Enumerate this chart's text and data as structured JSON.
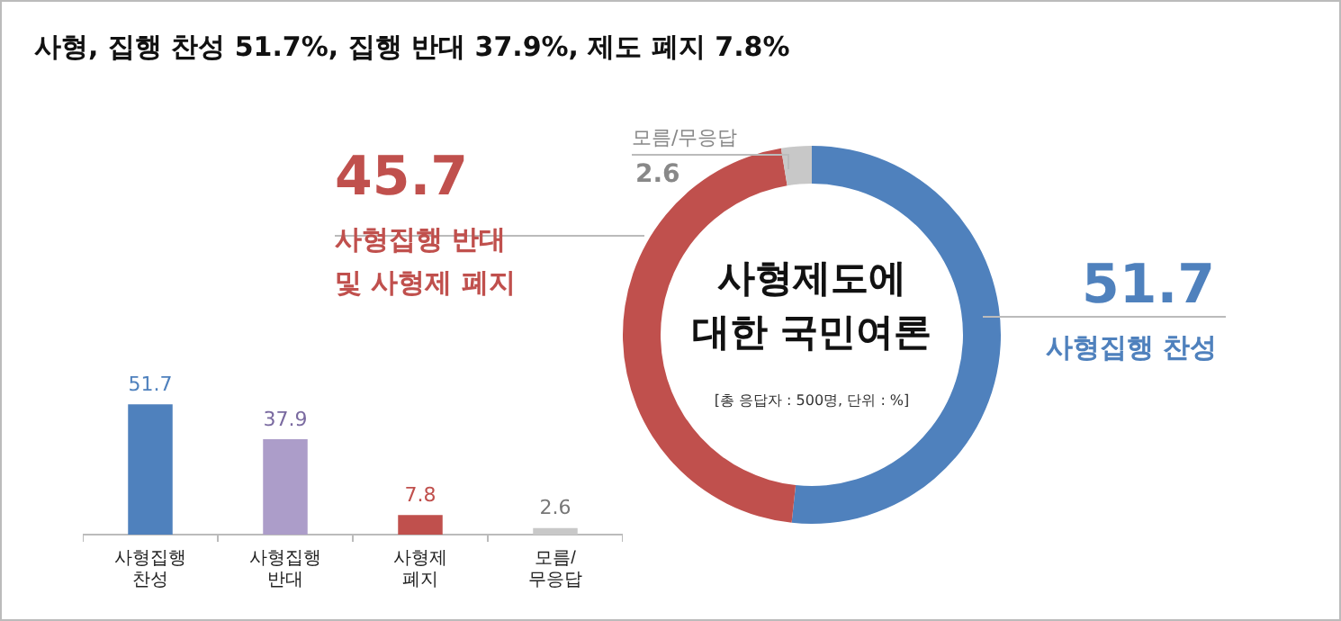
{
  "chart_data": [
    {
      "type": "bar",
      "title": "사형, 집행 찬성 51.7%, 집행 반대 37.9%, 제도 폐지 7.8%",
      "categories": [
        "사형집행\n찬성",
        "사형집행\n반대",
        "사형제\n폐지",
        "모름/\n무응답"
      ],
      "values": [
        51.7,
        37.9,
        7.8,
        2.6
      ],
      "colors": [
        "#4f81bd",
        "#ac9dc9",
        "#c0504d",
        "#c8c8c8"
      ],
      "data_labels": true,
      "tick_labels": "x",
      "grid": false,
      "legend": false
    },
    {
      "type": "donut",
      "title": "사형제도에\n대한 국민여론",
      "categories": [
        "사형집행 찬성",
        "사형집행 반대\n및 사형제 폐지",
        "모름/무응답"
      ],
      "values": [
        51.7,
        45.7,
        2.6
      ],
      "colors": [
        "#4f81bd",
        "#c0504d",
        "#c8c8c8"
      ],
      "data_labels": true,
      "legend": false,
      "annotations": [
        "[총 응답자 : 500명, 단위 : %]"
      ]
    }
  ]
}
